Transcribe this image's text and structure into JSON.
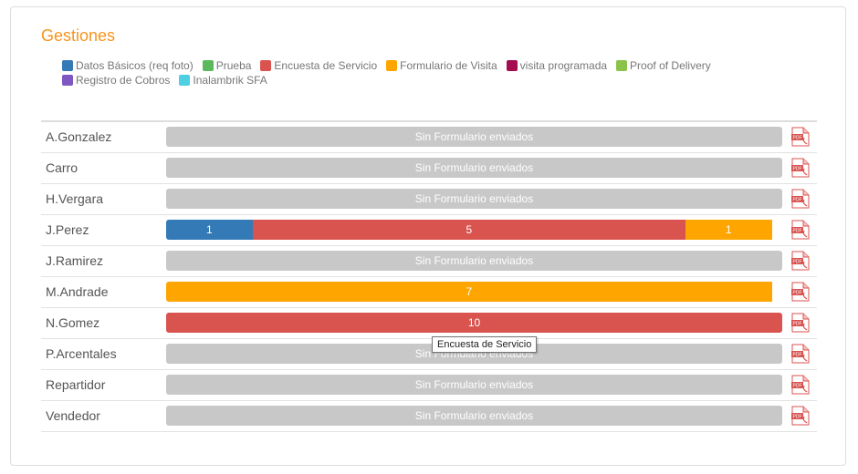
{
  "panel": {
    "title": "Gestiones",
    "legend": [
      {
        "label": "Datos Básicos (req foto)",
        "color": "#337ab7"
      },
      {
        "label": "Prueba",
        "color": "#5cb85c"
      },
      {
        "label": "Encuesta de Servicio",
        "color": "#d9534f"
      },
      {
        "label": "Formulario de Visita",
        "color": "#ffa500"
      },
      {
        "label": "visita programada",
        "color": "#a50d50"
      },
      {
        "label": "Proof of Delivery",
        "color": "#8bc34a"
      },
      {
        "label": "Registro de Cobros",
        "color": "#7e57c2"
      },
      {
        "label": "Inalambrik SFA",
        "color": "#4dd0e1"
      }
    ],
    "empty_label": "Sin Formulario enviados",
    "rows": [
      {
        "name": "A.Gonzalez",
        "segments": []
      },
      {
        "name": "Carro",
        "segments": []
      },
      {
        "name": "H.Vergara",
        "segments": []
      },
      {
        "name": "J.Perez",
        "segments": [
          {
            "value": 1,
            "color": "#337ab7",
            "label": "1",
            "type": "Datos Básicos (req foto)"
          },
          {
            "value": 5,
            "color": "#d9534f",
            "label": "5",
            "type": "Encuesta de Servicio"
          },
          {
            "value": 1,
            "color": "#ffa500",
            "label": "1",
            "type": "Formulario de Visita"
          }
        ]
      },
      {
        "name": "J.Ramirez",
        "segments": []
      },
      {
        "name": "M.Andrade",
        "segments": [
          {
            "value": 7,
            "color": "#ffa500",
            "label": "7",
            "type": "Formulario de Visita"
          }
        ]
      },
      {
        "name": "N.Gomez",
        "segments": [
          {
            "value": 10,
            "color": "#d9534f",
            "label": "10",
            "type": "Encuesta de Servicio"
          }
        ]
      },
      {
        "name": "P.Arcentales",
        "segments": []
      },
      {
        "name": "Repartidor",
        "segments": []
      },
      {
        "name": "Vendedor",
        "segments": []
      }
    ],
    "pdf_icon": "pdf-icon",
    "tooltip": "Encuesta de Servicio"
  }
}
